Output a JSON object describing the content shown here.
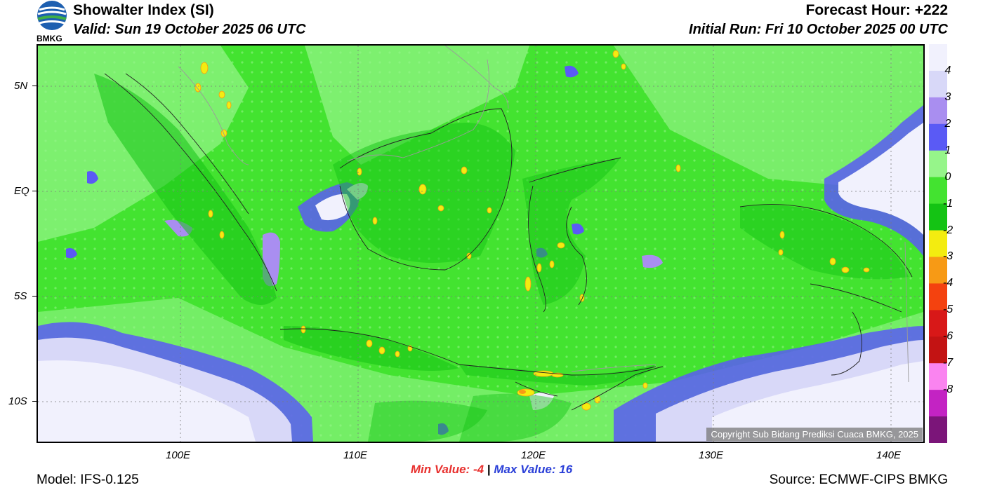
{
  "header": {
    "title": "Showalter Index (SI)",
    "valid": "Valid: Sun 19 October 2025 06 UTC",
    "forecast_hour": "Forecast Hour: +222",
    "initial_run": "Initial Run: Fri 10 October 2025 00 UTC"
  },
  "logo": {
    "text": "BMKG"
  },
  "map": {
    "lat_ticks": [
      "5N",
      "EQ",
      "5S",
      "10S"
    ],
    "lon_ticks": [
      "100E",
      "110E",
      "120E",
      "130E",
      "140E"
    ],
    "copyright": "Copyright Sub Bidang Prediksi Cuaca BMKG, 2025"
  },
  "colorbar": {
    "labels": [
      "4",
      "3",
      "2",
      "1",
      "0",
      "-1",
      "-2",
      "-3",
      "-4",
      "-5",
      "-6",
      "-7",
      "-8"
    ],
    "colors": [
      "#f1f1fd",
      "#d8d8f8",
      "#a98ef0",
      "#5a5af5",
      "#96f58a",
      "#43e330",
      "#14c314",
      "#f3ec10",
      "#f79a15",
      "#f4420f",
      "#d81818",
      "#c31313",
      "#fa84f0",
      "#c323c3",
      "#7b1579"
    ]
  },
  "stats": {
    "min_label": "Min Value:",
    "min_value": "-4",
    "separator": "|",
    "max_label": "Max Value:",
    "max_value": "16"
  },
  "footer": {
    "model": "Model: IFS-0.125",
    "source": "Source: ECMWF-CIPS BMKG"
  }
}
